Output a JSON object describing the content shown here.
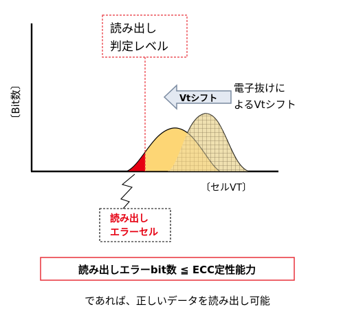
{
  "labels": {
    "read_level": [
      "読み出し",
      "判定レベル"
    ],
    "y_axis": "〔Bit数〕",
    "x_axis": "〔セルVT〕",
    "shift_arrow": "Vtシフト",
    "shift_desc": [
      "電子抜けに",
      "よるVtシフト"
    ],
    "error_cells": [
      "読み出し",
      "エラーセル"
    ],
    "condition": "読み出しエラーbit数 ≦ ECC定性能力",
    "footer": "であれば、正しいデータを読み出し可能"
  },
  "colors": {
    "axis": "#000000",
    "read_level_line": "#e8313a",
    "error_text": "#e60012",
    "error_fill": "#e60012",
    "shifted_fill": "#fdd675",
    "original_fill": "#efe0b0",
    "hatch": "#8a7a58",
    "arrow_fill": "#e3e9f2",
    "arrow_stroke": "#7a8aa0",
    "condition_border": "#e8313a"
  }
}
